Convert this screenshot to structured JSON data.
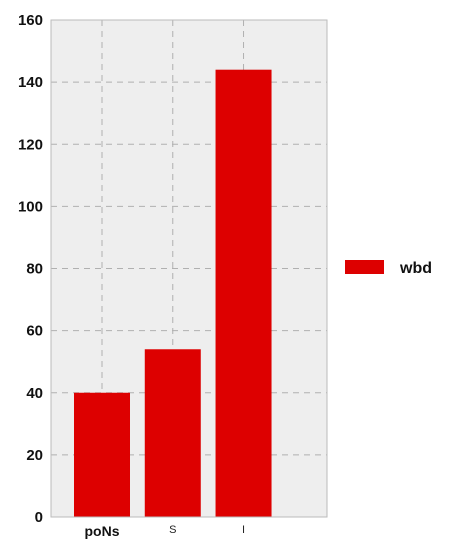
{
  "chart_data": {
    "type": "bar",
    "categories": [
      "poNs",
      "S",
      "I"
    ],
    "category_label_styles": [
      "bold",
      "small",
      "small"
    ],
    "series": [
      {
        "name": "wbd",
        "values": [
          40,
          54,
          144
        ],
        "color": "#dd0000"
      }
    ],
    "ylim": [
      0,
      160
    ],
    "yticks": [
      "0",
      "20",
      "40",
      "60",
      "80",
      "100",
      "120",
      "140",
      "160"
    ],
    "title": "",
    "xlabel": "",
    "ylabel": "",
    "grid": true,
    "grid_style": "dashed",
    "plot_background": "#eeeeee",
    "legend": {
      "placement": "right",
      "entries": [
        "wbd"
      ]
    }
  }
}
